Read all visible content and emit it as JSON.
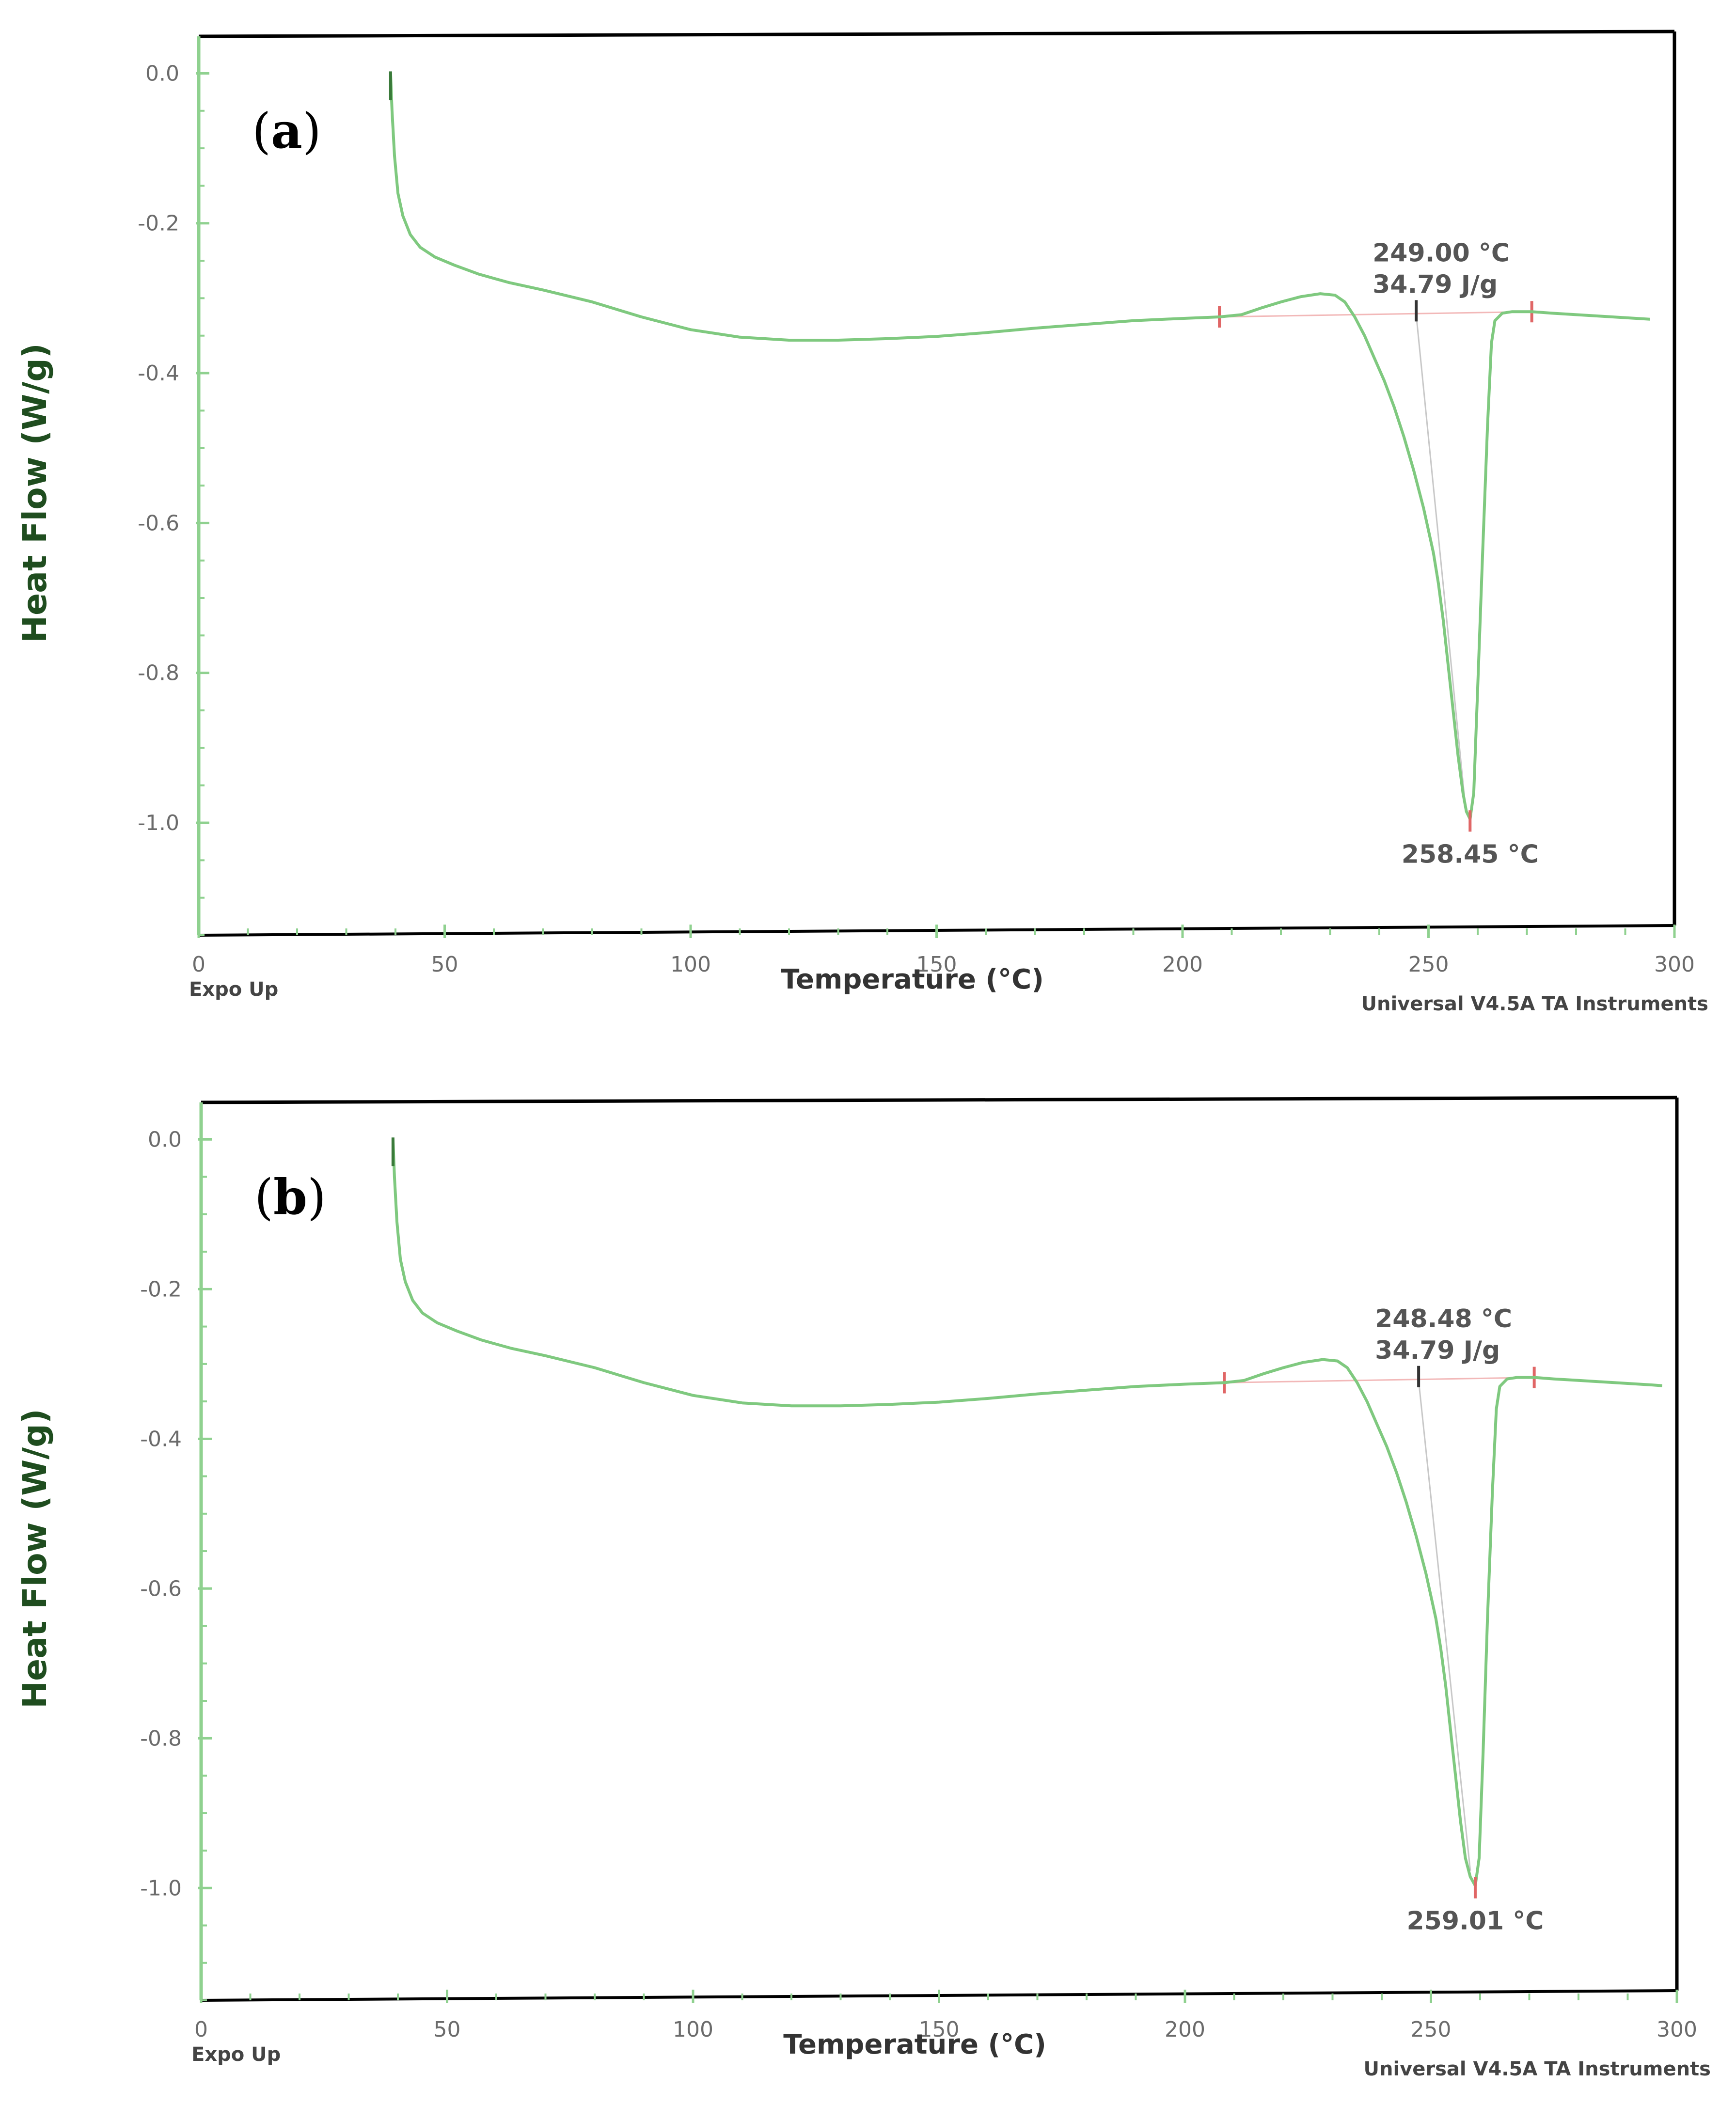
{
  "colors": {
    "curve": "#7fc97f",
    "curve_dark": "#5fa85f",
    "marker": "#e06666",
    "ylabel": "#1f4d1f",
    "frame": "#000000",
    "green_axis": "#8fd18f"
  },
  "chart_data": [
    {
      "type": "line",
      "panel": "(a)",
      "panel_letter": "a",
      "xlabel": "Temperature  (°C)",
      "ylabel": "Heat Flow  (W/g)",
      "xlim": [
        0,
        300
      ],
      "ylim": [
        -1.15,
        0.03
      ],
      "xticks": [
        "0",
        "50",
        "100",
        "150",
        "200",
        "250",
        "300"
      ],
      "yticks": [
        "0.0",
        "-0.2",
        "-0.4",
        "-0.6",
        "-0.8",
        "-1.0"
      ],
      "expo": "Expo Up",
      "instrument": "Universal V4.5A TA Instruments",
      "onset_label": "249.00 °C",
      "enthalpy_label": "34.79 J/g",
      "peak_label": "258.45 °C",
      "baseline": {
        "x1": 207.5,
        "y1": -0.325,
        "x2": 271,
        "y2": -0.318
      },
      "onset_tick": {
        "x": 247.5,
        "y": -0.322
      },
      "peak": {
        "x": 258.45,
        "y": -0.995
      },
      "series": [
        {
          "name": "heat flow",
          "x": [
            39,
            39.3,
            39.8,
            40.5,
            41.5,
            43,
            45,
            48,
            52,
            57,
            63,
            70,
            80,
            90,
            100,
            110,
            120,
            130,
            140,
            150,
            160,
            170,
            180,
            190,
            200,
            207.5,
            212,
            216,
            220,
            224,
            228,
            231,
            233,
            235,
            237,
            239,
            241,
            243,
            245,
            247,
            249,
            251,
            252,
            253,
            254,
            255,
            256,
            257,
            257.7,
            258.45,
            259.2,
            260,
            261,
            262,
            262.8,
            263.5,
            265,
            267,
            271,
            275,
            280,
            285,
            290,
            295
          ],
          "y": [
            0.0,
            -0.05,
            -0.11,
            -0.16,
            -0.19,
            -0.215,
            -0.232,
            -0.245,
            -0.256,
            -0.268,
            -0.279,
            -0.289,
            -0.305,
            -0.325,
            -0.342,
            -0.352,
            -0.356,
            -0.356,
            -0.354,
            -0.351,
            -0.346,
            -0.34,
            -0.335,
            -0.33,
            -0.327,
            -0.325,
            -0.322,
            -0.313,
            -0.305,
            -0.298,
            -0.294,
            -0.296,
            -0.305,
            -0.325,
            -0.35,
            -0.38,
            -0.41,
            -0.445,
            -0.485,
            -0.53,
            -0.58,
            -0.64,
            -0.68,
            -0.73,
            -0.79,
            -0.85,
            -0.91,
            -0.96,
            -0.985,
            -0.995,
            -0.96,
            -0.82,
            -0.64,
            -0.47,
            -0.36,
            -0.33,
            -0.32,
            -0.318,
            -0.318,
            -0.32,
            -0.322,
            -0.324,
            -0.326,
            -0.328
          ]
        }
      ]
    },
    {
      "type": "line",
      "panel": "(b)",
      "panel_letter": "b",
      "xlabel": "Temperature  (°C)",
      "ylabel": "Heat Flow  (W/g)",
      "xlim": [
        0,
        300
      ],
      "ylim": [
        -1.15,
        0.03
      ],
      "xticks": [
        "0",
        "50",
        "100",
        "150",
        "200",
        "250",
        "300"
      ],
      "yticks": [
        "0.0",
        "-0.2",
        "-0.4",
        "-0.6",
        "-0.8",
        "-1.0"
      ],
      "expo": "Expo Up",
      "instrument": "Universal V4.5A TA Instruments",
      "onset_label": "248.48 °C",
      "enthalpy_label": "34.79 J/g",
      "peak_label": "259.01 °C",
      "baseline": {
        "x1": 208,
        "y1": -0.325,
        "x2": 271,
        "y2": -0.318
      },
      "onset_tick": {
        "x": 247.5,
        "y": -0.322
      },
      "peak": {
        "x": 259.01,
        "y": -0.997
      },
      "series": [
        {
          "name": "heat flow",
          "x": [
            39,
            39.3,
            39.8,
            40.5,
            41.5,
            43,
            45,
            48,
            52,
            57,
            63,
            70,
            80,
            90,
            100,
            110,
            120,
            130,
            140,
            150,
            160,
            170,
            180,
            190,
            200,
            208,
            212,
            216,
            220,
            224,
            228,
            231,
            233,
            235,
            237,
            239,
            241,
            243,
            245,
            247,
            249,
            251,
            252,
            253,
            254,
            255,
            256,
            257,
            258,
            259.01,
            259.8,
            260.6,
            261.5,
            262.5,
            263.3,
            264,
            265.5,
            267.5,
            271,
            275,
            280,
            285,
            290,
            295,
            297
          ],
          "y": [
            0.0,
            -0.05,
            -0.11,
            -0.16,
            -0.19,
            -0.215,
            -0.232,
            -0.245,
            -0.256,
            -0.268,
            -0.279,
            -0.289,
            -0.305,
            -0.325,
            -0.342,
            -0.352,
            -0.356,
            -0.356,
            -0.354,
            -0.351,
            -0.346,
            -0.34,
            -0.335,
            -0.33,
            -0.327,
            -0.325,
            -0.322,
            -0.313,
            -0.305,
            -0.298,
            -0.294,
            -0.296,
            -0.305,
            -0.325,
            -0.35,
            -0.38,
            -0.41,
            -0.445,
            -0.485,
            -0.53,
            -0.58,
            -0.64,
            -0.68,
            -0.73,
            -0.79,
            -0.85,
            -0.91,
            -0.96,
            -0.985,
            -0.997,
            -0.96,
            -0.82,
            -0.64,
            -0.47,
            -0.36,
            -0.33,
            -0.32,
            -0.318,
            -0.318,
            -0.32,
            -0.322,
            -0.324,
            -0.326,
            -0.328,
            -0.329
          ]
        }
      ]
    }
  ]
}
